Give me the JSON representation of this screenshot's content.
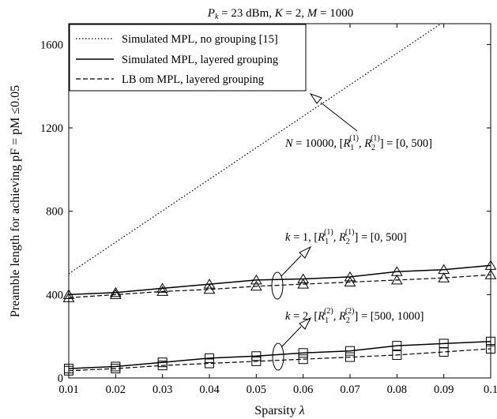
{
  "chart_data": {
    "type": "line",
    "title": "P_k = 23 dBm, K = 2, M = 1000",
    "title_parts": {
      "p": "P",
      "p_sub": "k",
      "rest": " = 23 dBm, ",
      "k": "K",
      "k_rest": " = 2, ",
      "m": "M",
      "m_rest": " = 1000"
    },
    "xlabel": "Sparsity λ",
    "xlabel_parts": {
      "text": "Sparsity ",
      "sym": "λ"
    },
    "ylabel": "Preamble length for achieving pF = pM ≤0.05",
    "xlim": [
      0.01,
      0.1
    ],
    "ylim": [
      0,
      1700
    ],
    "x_ticks": [
      0.01,
      0.02,
      0.03,
      0.04,
      0.05,
      0.06,
      0.07,
      0.08,
      0.09,
      0.1
    ],
    "x_tick_labels": [
      "0.01",
      "0.02",
      "0.03",
      "0.04",
      "0.05",
      "0.06",
      "0.07",
      "0.08",
      "0.09",
      "0.1"
    ],
    "y_ticks": [
      0,
      400,
      800,
      1200,
      1600
    ],
    "y_tick_labels": [
      "0",
      "400",
      "800",
      "1200",
      "1600"
    ],
    "grid": false,
    "legend_position": "top-left",
    "legend": [
      {
        "label": "Simulated MPL, no grouping [15]",
        "style": "dotted"
      },
      {
        "label": "Simulated MPL, layered grouping",
        "style": "solid"
      },
      {
        "label": "LB om MPL, layered grouping",
        "style": "dashed"
      }
    ],
    "x": [
      0.01,
      0.02,
      0.03,
      0.04,
      0.05,
      0.06,
      0.07,
      0.08,
      0.09,
      0.1
    ],
    "series": [
      {
        "name": "Simulated MPL, no grouping [15]",
        "style": "dotted",
        "marker": "none",
        "x": [
          0.01,
          0.0894
        ],
        "values": [
          500,
          1700
        ]
      },
      {
        "name": "Simulated MPL, layered grouping",
        "group": "k = 1",
        "style": "solid",
        "marker": "triangle",
        "values": [
          400,
          410,
          430,
          450,
          470,
          475,
          485,
          510,
          520,
          540
        ]
      },
      {
        "name": "LB om MPL, layered grouping",
        "group": "k = 1",
        "style": "dashed",
        "marker": "triangle",
        "values": [
          385,
          400,
          415,
          425,
          440,
          450,
          460,
          470,
          480,
          495
        ]
      },
      {
        "name": "Simulated MPL, layered grouping",
        "group": "k = 2",
        "style": "solid",
        "marker": "square",
        "values": [
          45,
          55,
          75,
          95,
          105,
          120,
          130,
          155,
          165,
          175
        ]
      },
      {
        "name": "LB om MPL, layered grouping",
        "group": "k = 2",
        "style": "dashed",
        "marker": "square",
        "values": [
          35,
          45,
          60,
          70,
          80,
          90,
          100,
          110,
          125,
          140
        ]
      }
    ],
    "annotations": [
      {
        "id": "n10000",
        "text": "N = 10000, [R1(1), R2(1)] = [0, 500]",
        "parts": {
          "a": "N",
          "b": " = 10000, [",
          "c": "R",
          "d": "1",
          "e": "(1)",
          "f": ", ",
          "g": "R",
          "h": "2",
          "i": "(1)",
          "j": "] = [0, 500]"
        }
      },
      {
        "id": "k1",
        "text": "k = 1, [R1(1), R2(1)] = [0, 500]",
        "parts": {
          "a": "k",
          "b": " = 1, [",
          "c": "R",
          "d": "1",
          "e": "(1)",
          "f": ", ",
          "g": "R",
          "h": "2",
          "i": "(1)",
          "j": "] = [0, 500]"
        }
      },
      {
        "id": "k2",
        "text": "k = 2, [R1(2), R2(2)] = [500, 1000]",
        "parts": {
          "a": "k",
          "b": " = 2, [",
          "c": "R",
          "d": "1",
          "e": "(2)",
          "f": ", ",
          "g": "R",
          "h": "2",
          "i": "(2)",
          "j": "] = [500, 1000]"
        }
      }
    ]
  }
}
